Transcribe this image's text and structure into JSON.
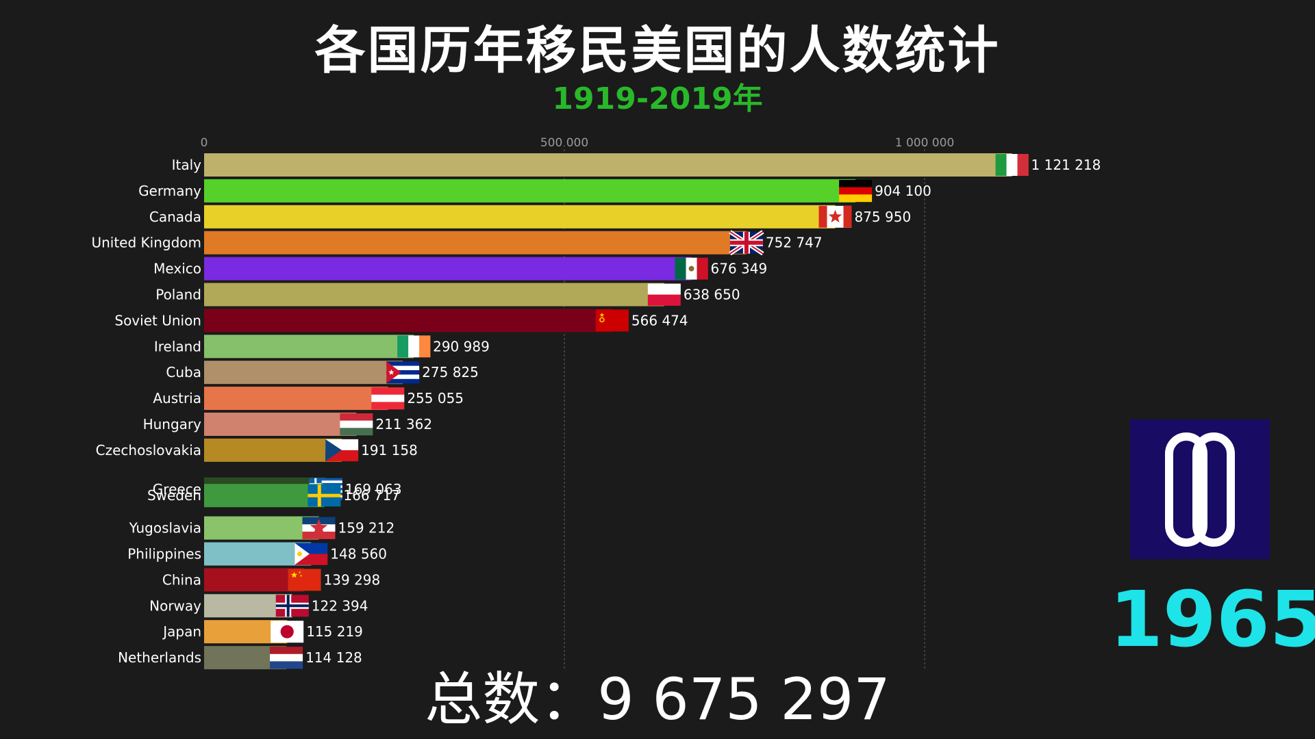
{
  "title": "各国历年移民美国的人数统计",
  "subtitle": "1919-2019年",
  "year": "1965",
  "total_label": "总数：",
  "total_value": "9 675 297",
  "colors": {
    "background": "#1b1b1b",
    "subtitle": "#29b82a",
    "year": "#1ee3e8",
    "badge_bg": "#170b63",
    "gridline": "#4a4a4a",
    "tick_label": "#9a9a9a"
  },
  "badge_icon": "infinity-loop-icon",
  "chart_data": {
    "type": "bar",
    "orientation": "horizontal",
    "title": "各国历年移民美国的人数统计",
    "subtitle": "1919-2019年",
    "xlim": [
      0,
      1150000
    ],
    "x_ticks": [
      0,
      500000,
      1000000
    ],
    "x_tick_labels": [
      "0",
      "500 000",
      "1 000 000"
    ],
    "grid": true,
    "series": [
      {
        "categories": [
          "Italy",
          "Germany",
          "Canada",
          "United Kingdom",
          "Mexico",
          "Poland",
          "Soviet Union",
          "Ireland",
          "Cuba",
          "Austria",
          "Hungary",
          "Czechoslovakia",
          "Greece",
          "Sweden",
          "Yugoslavia",
          "Philippines",
          "China",
          "Norway",
          "Japan",
          "Netherlands"
        ],
        "values": [
          1121218,
          904100,
          875950,
          752747,
          676349,
          638650,
          566474,
          290989,
          275825,
          255055,
          211362,
          191158,
          169063,
          166717,
          159212,
          148560,
          139298,
          122394,
          115219,
          114128
        ],
        "value_labels": [
          "1 121 218",
          "904 100",
          "875 950",
          "752 747",
          "676 349",
          "638 650",
          "566 474",
          "290 989",
          "275 825",
          "255 055",
          "211 362",
          "191 158",
          "169 063",
          "166 717",
          "159 212",
          "148 560",
          "139 298",
          "122 394",
          "115 219",
          "114 128"
        ],
        "colors": [
          "#bdb16b",
          "#55d12a",
          "#e9d028",
          "#e07a25",
          "#7a2ae0",
          "#b1a858",
          "#7a0019",
          "#86c06a",
          "#b0906a",
          "#e8744a",
          "#d0826e",
          "#b58a22",
          "#2c4a22",
          "#3f9a3f",
          "#8ac46a",
          "#7ec0c6",
          "#a5101c",
          "#b9b8a2",
          "#e8a03a",
          "#717458"
        ],
        "flags": [
          "italy-flag-icon",
          "germany-flag-icon",
          "canada-flag-icon",
          "united-kingdom-flag-icon",
          "mexico-flag-icon",
          "poland-flag-icon",
          "soviet-union-flag-icon",
          "ireland-flag-icon",
          "cuba-flag-icon",
          "austria-flag-icon",
          "hungary-flag-icon",
          "czechoslovakia-flag-icon",
          "greece-flag-icon",
          "sweden-flag-icon",
          "yugoslavia-flag-icon",
          "philippines-flag-icon",
          "china-flag-icon",
          "norway-flag-icon",
          "japan-flag-icon",
          "netherlands-flag-icon"
        ]
      }
    ]
  }
}
